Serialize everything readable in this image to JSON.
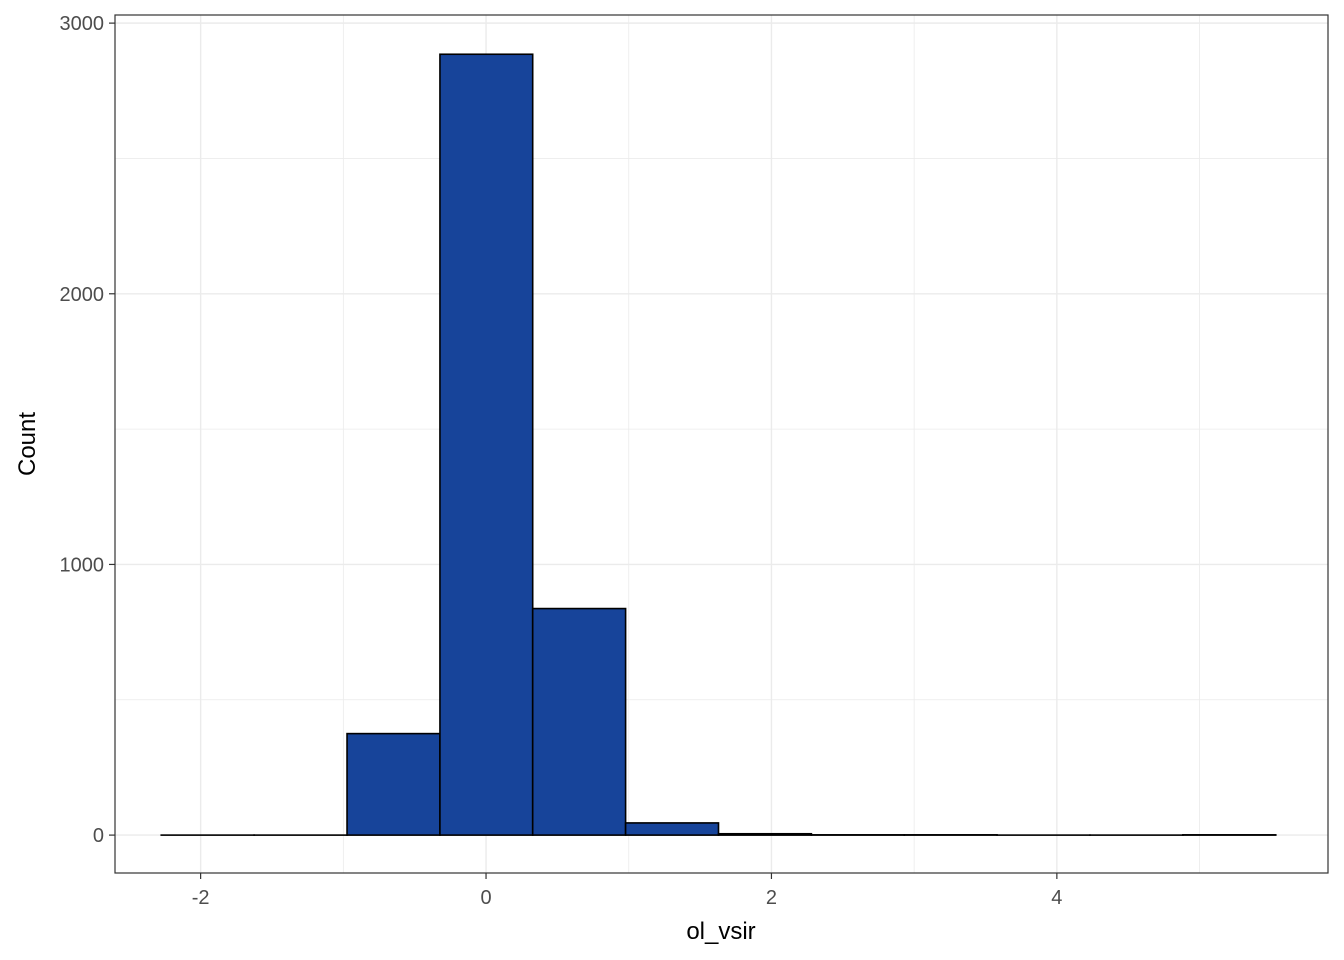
{
  "chart_data": {
    "type": "bar",
    "title": "",
    "xlabel": "ol_vsir",
    "ylabel": "Count",
    "xlim": [
      -2.6,
      5.9
    ],
    "ylim": [
      -140,
      3030
    ],
    "xticks": [
      -2,
      0,
      2,
      4
    ],
    "yticks": [
      0,
      1000,
      2000,
      3000
    ],
    "grid": true,
    "legend": "none",
    "bin_edges": [
      -2.276,
      -1.625,
      -0.974,
      -0.323,
      0.327,
      0.978,
      1.629,
      2.28,
      2.931,
      3.581,
      4.232,
      4.883,
      5.534
    ],
    "values": [
      0,
      0,
      375,
      2885,
      837,
      45,
      5,
      1,
      1,
      0,
      0,
      1
    ]
  },
  "colors": {
    "bar_fill": "#17449a",
    "bar_outline": "#000000",
    "grid": "#ebebeb",
    "panel_border": "#333333",
    "tick_text": "#4d4d4d"
  }
}
